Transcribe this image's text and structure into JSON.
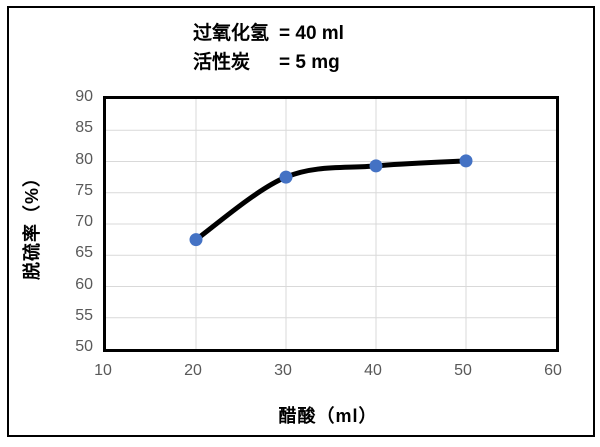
{
  "title": {
    "lines": [
      {
        "label": "过氧化氢",
        "value": "= 40 ml"
      },
      {
        "label": "活性炭",
        "value": "= 5 mg"
      }
    ]
  },
  "chart_data": {
    "type": "line",
    "x": [
      20,
      30,
      40,
      50
    ],
    "y": [
      67.5,
      77.5,
      79.3,
      80.1
    ],
    "series": [
      {
        "name": "脱硫率",
        "x": [
          20,
          30,
          40,
          50
        ],
        "values": [
          67.5,
          77.5,
          79.3,
          80.1
        ]
      }
    ],
    "title": "过氧化氢 = 40 ml / 活性炭 = 5 mg",
    "xlabel": "醋酸（ml）",
    "ylabel": "脱硫率（%）",
    "xlim": [
      10,
      60
    ],
    "ylim": [
      50,
      90
    ],
    "x_ticks": [
      10,
      20,
      30,
      40,
      50,
      60
    ],
    "y_ticks": [
      90,
      85,
      80,
      75,
      70,
      65,
      60,
      55,
      50
    ],
    "grid": true,
    "legend": "none",
    "smooth_line": true,
    "line_color": "#000000",
    "line_width": 5,
    "marker_color": "#4472C4",
    "marker_radius": 6.5
  },
  "colors": {
    "background": "#ffffff",
    "outer_border": "#000000",
    "plot_border": "#000000",
    "gridline": "#D9D9D9",
    "tick_label": "#595959",
    "axis_title": "#000000"
  }
}
